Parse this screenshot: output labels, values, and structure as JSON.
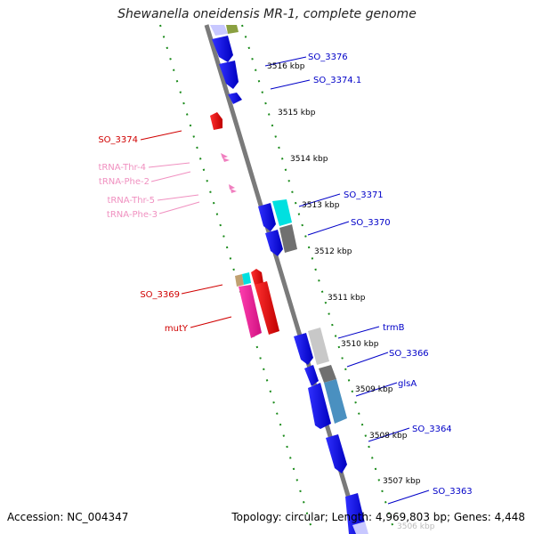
{
  "title": "Shewanella oneidensis MR-1, complete genome",
  "accession": "Accession: NC_004347",
  "summary": "Topology: circular; Length: 4,969,803 bp; Genes: 4,448",
  "colors": {
    "backbone": "#7a7a7a",
    "tick": "#1a8a1a",
    "forward_gene": "#1010e0",
    "reverse_gene": "#e00000",
    "trna": "#f080c0",
    "cyan_gene": "#00e0e0",
    "grey_gene": "#707070",
    "lightgrey_gene": "#c8c8c8",
    "steelblue_gene": "#4a90c0",
    "pink_gene": "#f0209a",
    "tan_gene": "#c0a070",
    "olive_gene": "#8aa040",
    "label_blue": "#0000c8",
    "label_red": "#d00000",
    "label_pink": "#f090c0"
  },
  "scale_labels": [
    "3516 kbp",
    "3515 kbp",
    "3514 kbp",
    "3513 kbp",
    "3512 kbp",
    "3511 kbp",
    "3510 kbp",
    "3509 kbp",
    "3508 kbp",
    "3507 kbp",
    "3506 kbp"
  ],
  "gene_labels": {
    "right": [
      "SO_3376",
      "SO_3374.1",
      "SO_3371",
      "SO_3370",
      "trmB",
      "SO_3366",
      "glsA",
      "SO_3364",
      "SO_3363"
    ],
    "left_red": [
      "SO_3374",
      "SO_3369",
      "mutY"
    ],
    "left_pink": [
      "tRNA-Thr-4",
      "tRNA-Phe-2",
      "tRNA-Thr-5",
      "tRNA-Phe-3"
    ]
  }
}
